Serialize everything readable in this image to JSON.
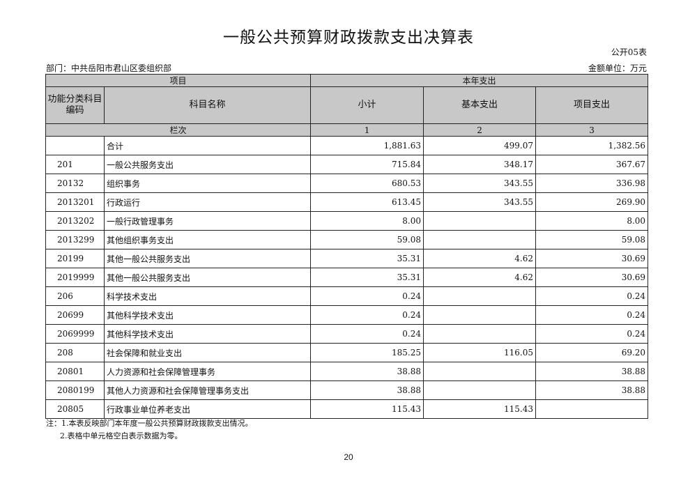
{
  "title": "一般公共预算财政拨款支出决算表",
  "table_no": "公开05表",
  "department": "部门：中共岳阳市君山区委组织部",
  "unit": "金额单位：万元",
  "header": {
    "item": "项目",
    "current_year": "本年支出",
    "code": "功能分类科目编码",
    "name": "科目名称",
    "subtotal": "小计",
    "basic": "基本支出",
    "project": "项目支出",
    "column_order": "栏次",
    "col1": "1",
    "col2": "2",
    "col3": "3"
  },
  "rows": [
    {
      "code": "",
      "name": "合计",
      "subtotal": "1,881.63",
      "basic": "499.07",
      "project": "1,382.56"
    },
    {
      "code": "201",
      "name": "一般公共服务支出",
      "subtotal": "715.84",
      "basic": "348.17",
      "project": "367.67"
    },
    {
      "code": "20132",
      "name": "组织事务",
      "subtotal": "680.53",
      "basic": "343.55",
      "project": "336.98"
    },
    {
      "code": "2013201",
      "name": "行政运行",
      "subtotal": "613.45",
      "basic": "343.55",
      "project": "269.90"
    },
    {
      "code": "2013202",
      "name": "一般行政管理事务",
      "subtotal": "8.00",
      "basic": "",
      "project": "8.00"
    },
    {
      "code": "2013299",
      "name": "其他组织事务支出",
      "subtotal": "59.08",
      "basic": "",
      "project": "59.08"
    },
    {
      "code": "20199",
      "name": "其他一般公共服务支出",
      "subtotal": "35.31",
      "basic": "4.62",
      "project": "30.69"
    },
    {
      "code": "2019999",
      "name": "其他一般公共服务支出",
      "subtotal": "35.31",
      "basic": "4.62",
      "project": "30.69"
    },
    {
      "code": "206",
      "name": "科学技术支出",
      "subtotal": "0.24",
      "basic": "",
      "project": "0.24"
    },
    {
      "code": "20699",
      "name": "其他科学技术支出",
      "subtotal": "0.24",
      "basic": "",
      "project": "0.24"
    },
    {
      "code": "2069999",
      "name": "其他科学技术支出",
      "subtotal": "0.24",
      "basic": "",
      "project": "0.24"
    },
    {
      "code": "208",
      "name": "社会保障和就业支出",
      "subtotal": "185.25",
      "basic": "116.05",
      "project": "69.20"
    },
    {
      "code": "20801",
      "name": "人力资源和社会保障管理事务",
      "subtotal": "38.88",
      "basic": "",
      "project": "38.88"
    },
    {
      "code": "2080199",
      "name": "其他人力资源和社会保障管理事务支出",
      "subtotal": "38.88",
      "basic": "",
      "project": "38.88"
    },
    {
      "code": "20805",
      "name": "行政事业单位养老支出",
      "subtotal": "115.43",
      "basic": "115.43",
      "project": ""
    }
  ],
  "notes": [
    "注：1.本表反映部门本年度一般公共预算财政拨款支出情况。",
    "2.表格中单元格空白表示数据为零。"
  ],
  "page_number": "20"
}
